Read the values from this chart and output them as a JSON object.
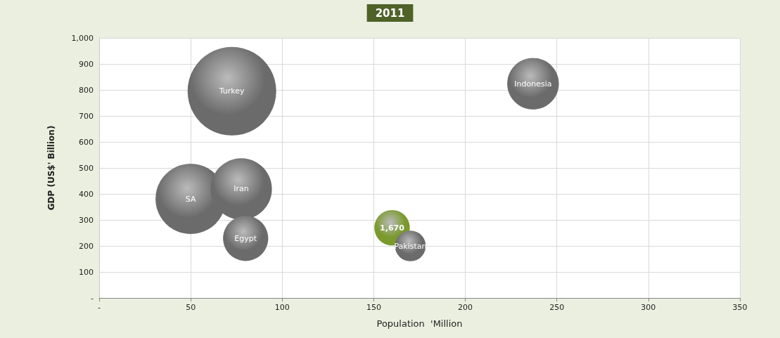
{
  "chart_data": {
    "type": "bubble",
    "title": "2011",
    "xlabel": "Population  'Million",
    "ylabel": "GDP (US$' Billion)",
    "xlim": [
      0,
      350
    ],
    "xticks": [
      {
        "value": 0,
        "label": "-"
      },
      50,
      100,
      150,
      200,
      250,
      300,
      350
    ],
    "ylim": [
      0,
      1000
    ],
    "yticks": [
      {
        "value": 0,
        "label": "-"
      },
      100,
      200,
      300,
      400,
      500,
      600,
      700,
      800,
      900,
      {
        "value": 1000,
        "label": "1,000"
      }
    ],
    "grid": true,
    "annotations": [
      {
        "text": "1,670",
        "x": 160,
        "y": 270
      }
    ],
    "series": [
      {
        "name": "Turkey",
        "color": "#6b6b6b",
        "x": [
          72.5
        ],
        "values": [
          795
        ],
        "sizes": [
          1
        ]
      },
      {
        "name": "SA",
        "color": "#6b6b6b",
        "x": [
          50
        ],
        "values": [
          381
        ],
        "sizes": [
          0.63
        ]
      },
      {
        "name": "Iran",
        "color": "#6b6b6b",
        "x": [
          77.6
        ],
        "values": [
          419
        ],
        "sizes": [
          0.48
        ]
      },
      {
        "name": "Egypt",
        "color": "#6b6b6b",
        "x": [
          80
        ],
        "values": [
          229
        ],
        "sizes": [
          0.26
        ]
      },
      {
        "color": "#7a9a2e",
        "x": [
          160
        ],
        "values": [
          270
        ],
        "sizes": [
          0.16
        ]
      },
      {
        "name": "Pakistan",
        "color": "#6b6b6b",
        "x": [
          170
        ],
        "values": [
          200
        ],
        "sizes": [
          0.12
        ]
      },
      {
        "name": "Indonesia",
        "color": "#6b6b6b",
        "x": [
          237
        ],
        "values": [
          824
        ],
        "sizes": [
          0.34
        ]
      }
    ]
  }
}
